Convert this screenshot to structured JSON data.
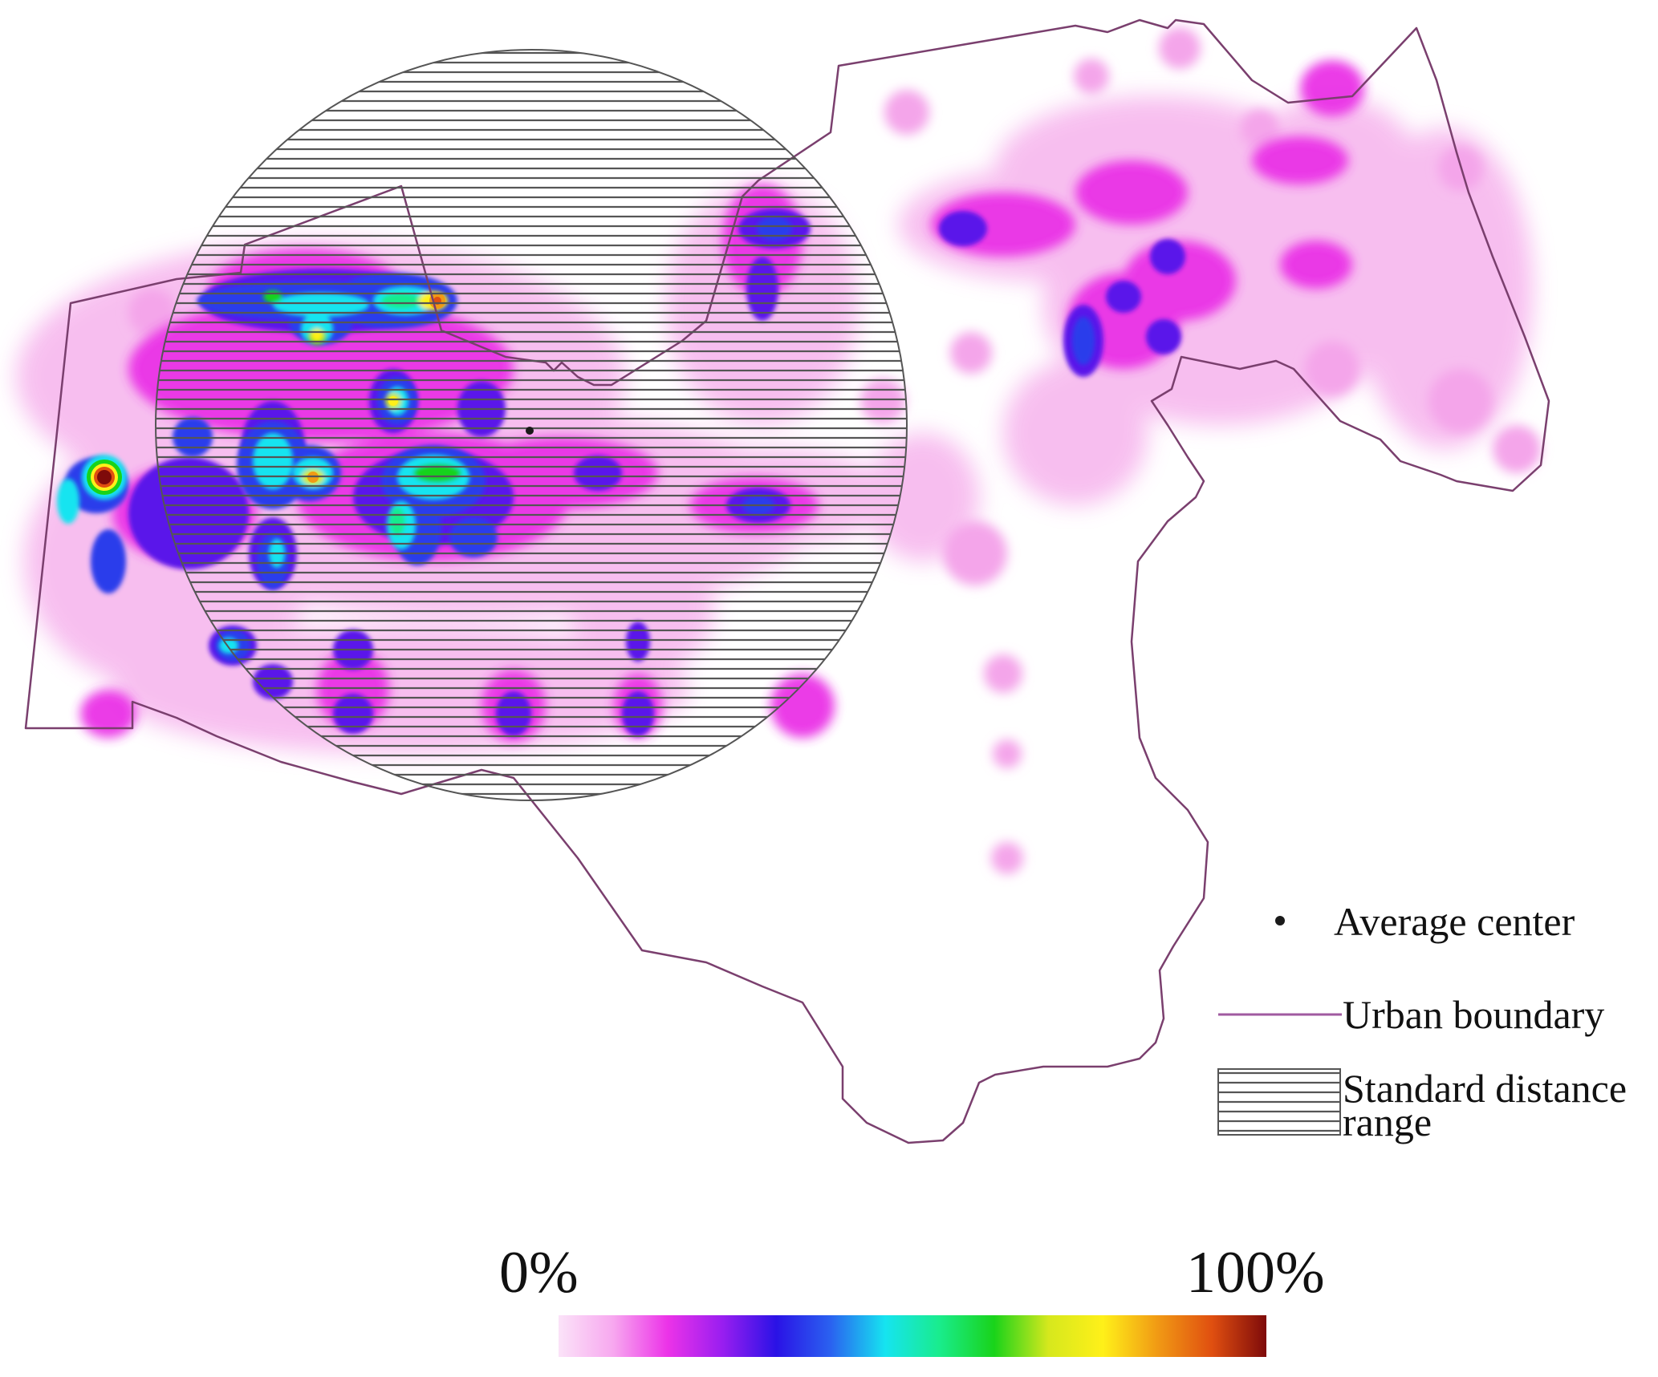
{
  "map": {
    "boundary_color": "#7a3f6e",
    "center_marker_color": "#1a1a1a",
    "hatch_color": "#555555"
  },
  "legend": {
    "average_center": "Average center",
    "urban_boundary": "Urban boundary",
    "standard_distance_line1": "Standard distance",
    "standard_distance_line2": "range"
  },
  "colorbar": {
    "min_label": "0%",
    "max_label": "100%",
    "colors": [
      "#fbe3f8",
      "#f7a8ef",
      "#ec33e8",
      "#9a1ef0",
      "#2a12e6",
      "#2a62f0",
      "#16e4f0",
      "#19ec8c",
      "#19d31a",
      "#d6e81d",
      "#fff019",
      "#f19a14",
      "#e04f10",
      "#7e0a0a"
    ]
  }
}
